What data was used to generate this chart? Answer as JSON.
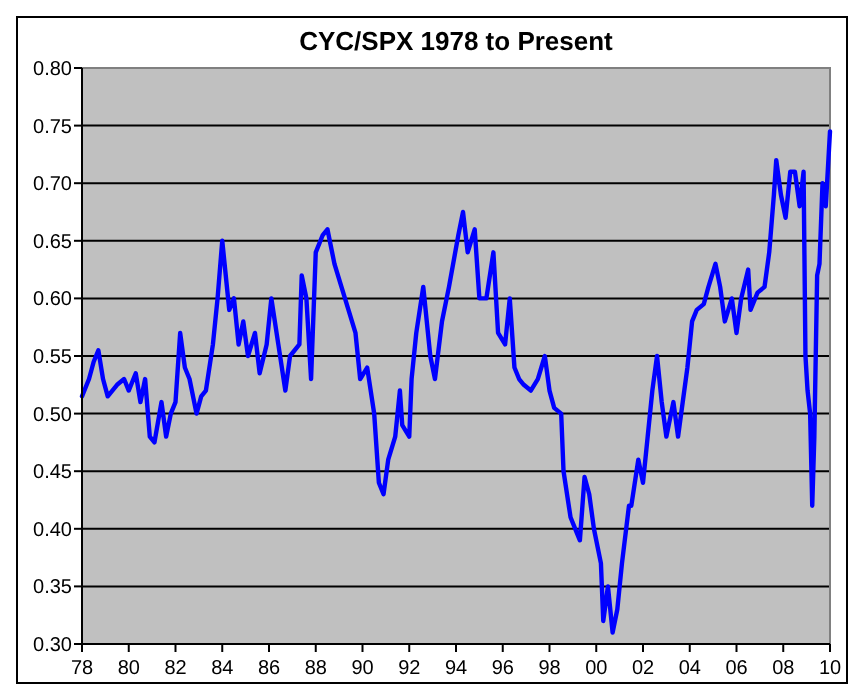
{
  "chart_data": {
    "type": "line",
    "title": "CYC/SPX 1978 to Present",
    "x": [
      1978.0,
      1978.3,
      1978.5,
      1978.7,
      1978.9,
      1979.1,
      1979.5,
      1979.8,
      1980.0,
      1980.3,
      1980.5,
      1980.7,
      1980.9,
      1981.1,
      1981.4,
      1981.6,
      1981.8,
      1982.0,
      1982.2,
      1982.4,
      1982.6,
      1982.9,
      1983.1,
      1983.3,
      1983.6,
      1983.8,
      1984.0,
      1984.3,
      1984.5,
      1984.7,
      1984.9,
      1985.1,
      1985.4,
      1985.6,
      1985.9,
      1986.1,
      1986.4,
      1986.7,
      1986.9,
      1987.3,
      1987.4,
      1987.6,
      1987.8,
      1988.0,
      1988.3,
      1988.5,
      1988.8,
      1989.1,
      1989.4,
      1989.7,
      1989.9,
      1990.2,
      1990.5,
      1990.7,
      1990.9,
      1991.1,
      1991.4,
      1991.6,
      1991.7,
      1992.0,
      1992.1,
      1992.3,
      1992.6,
      1992.8,
      1992.9,
      1993.1,
      1993.4,
      1993.6,
      1993.7,
      1994.1,
      1994.3,
      1994.5,
      1994.8,
      1995.0,
      1995.3,
      1995.6,
      1995.8,
      1996.1,
      1996.3,
      1996.5,
      1996.7,
      1996.9,
      1997.2,
      1997.5,
      1997.8,
      1998.0,
      1998.2,
      1998.5,
      1998.6,
      1998.9,
      1999.1,
      1999.3,
      1999.5,
      1999.7,
      1999.9,
      2000.2,
      2000.3,
      2000.5,
      2000.7,
      2000.9,
      2001.1,
      2001.4,
      2001.5,
      2001.8,
      2002.0,
      2002.2,
      2002.4,
      2002.6,
      2002.8,
      2003.0,
      2003.3,
      2003.5,
      2003.7,
      2003.9,
      2004.1,
      2004.3,
      2004.6,
      2004.8,
      2005.1,
      2005.3,
      2005.5,
      2005.8,
      2006.0,
      2006.2,
      2006.5,
      2006.6,
      2006.9,
      2007.2,
      2007.4,
      2007.6,
      2007.7,
      2007.9,
      2008.1,
      2008.3,
      2008.5,
      2008.7,
      2008.87,
      2008.95,
      2009.04,
      2009.15,
      2009.24,
      2009.33,
      2009.45,
      2009.55,
      2009.68,
      2009.82,
      2010.0
    ],
    "series": [
      {
        "color": "#0000ff",
        "values": [
          0.515,
          0.53,
          0.545,
          0.555,
          0.53,
          0.515,
          0.525,
          0.53,
          0.52,
          0.535,
          0.51,
          0.53,
          0.48,
          0.475,
          0.51,
          0.48,
          0.5,
          0.51,
          0.57,
          0.54,
          0.53,
          0.5,
          0.515,
          0.52,
          0.56,
          0.6,
          0.65,
          0.59,
          0.6,
          0.56,
          0.58,
          0.55,
          0.57,
          0.535,
          0.56,
          0.6,
          0.56,
          0.52,
          0.55,
          0.56,
          0.62,
          0.6,
          0.53,
          0.64,
          0.655,
          0.66,
          0.63,
          0.61,
          0.59,
          0.57,
          0.53,
          0.54,
          0.5,
          0.44,
          0.43,
          0.46,
          0.48,
          0.52,
          0.49,
          0.48,
          0.53,
          0.57,
          0.61,
          0.57,
          0.55,
          0.53,
          0.58,
          0.6,
          0.61,
          0.655,
          0.675,
          0.64,
          0.66,
          0.6,
          0.6,
          0.64,
          0.57,
          0.56,
          0.6,
          0.54,
          0.53,
          0.525,
          0.52,
          0.53,
          0.55,
          0.52,
          0.505,
          0.5,
          0.45,
          0.41,
          0.4,
          0.39,
          0.445,
          0.43,
          0.4,
          0.37,
          0.32,
          0.35,
          0.31,
          0.33,
          0.37,
          0.42,
          0.42,
          0.46,
          0.44,
          0.48,
          0.52,
          0.55,
          0.51,
          0.48,
          0.51,
          0.48,
          0.51,
          0.54,
          0.58,
          0.59,
          0.595,
          0.61,
          0.63,
          0.61,
          0.58,
          0.6,
          0.57,
          0.6,
          0.625,
          0.59,
          0.605,
          0.61,
          0.64,
          0.69,
          0.72,
          0.69,
          0.67,
          0.71,
          0.71,
          0.68,
          0.71,
          0.55,
          0.52,
          0.5,
          0.42,
          0.48,
          0.62,
          0.63,
          0.7,
          0.68,
          0.745
        ]
      }
    ],
    "xlim": [
      1978,
      2010
    ],
    "xticks": [
      {
        "value": 1978,
        "label": "78"
      },
      {
        "value": 1980,
        "label": "80"
      },
      {
        "value": 1982,
        "label": "82"
      },
      {
        "value": 1984,
        "label": "84"
      },
      {
        "value": 1986,
        "label": "86"
      },
      {
        "value": 1988,
        "label": "88"
      },
      {
        "value": 1990,
        "label": "90"
      },
      {
        "value": 1992,
        "label": "92"
      },
      {
        "value": 1994,
        "label": "94"
      },
      {
        "value": 1996,
        "label": "96"
      },
      {
        "value": 1998,
        "label": "98"
      },
      {
        "value": 2000,
        "label": "00"
      },
      {
        "value": 2002,
        "label": "02"
      },
      {
        "value": 2004,
        "label": "04"
      },
      {
        "value": 2006,
        "label": "06"
      },
      {
        "value": 2008,
        "label": "08"
      },
      {
        "value": 2010,
        "label": "10"
      }
    ],
    "ylim": [
      0.3,
      0.8
    ],
    "yticks": [
      {
        "value": 0.3,
        "label": "0.30"
      },
      {
        "value": 0.35,
        "label": "0.35"
      },
      {
        "value": 0.4,
        "label": "0.40"
      },
      {
        "value": 0.45,
        "label": "0.45"
      },
      {
        "value": 0.5,
        "label": "0.50"
      },
      {
        "value": 0.55,
        "label": "0.55"
      },
      {
        "value": 0.6,
        "label": "0.60"
      },
      {
        "value": 0.65,
        "label": "0.65"
      },
      {
        "value": 0.7,
        "label": "0.70"
      },
      {
        "value": 0.75,
        "label": "0.75"
      },
      {
        "value": 0.8,
        "label": "0.80"
      }
    ],
    "grid": "y",
    "marker": "none",
    "line_style": "solid"
  }
}
